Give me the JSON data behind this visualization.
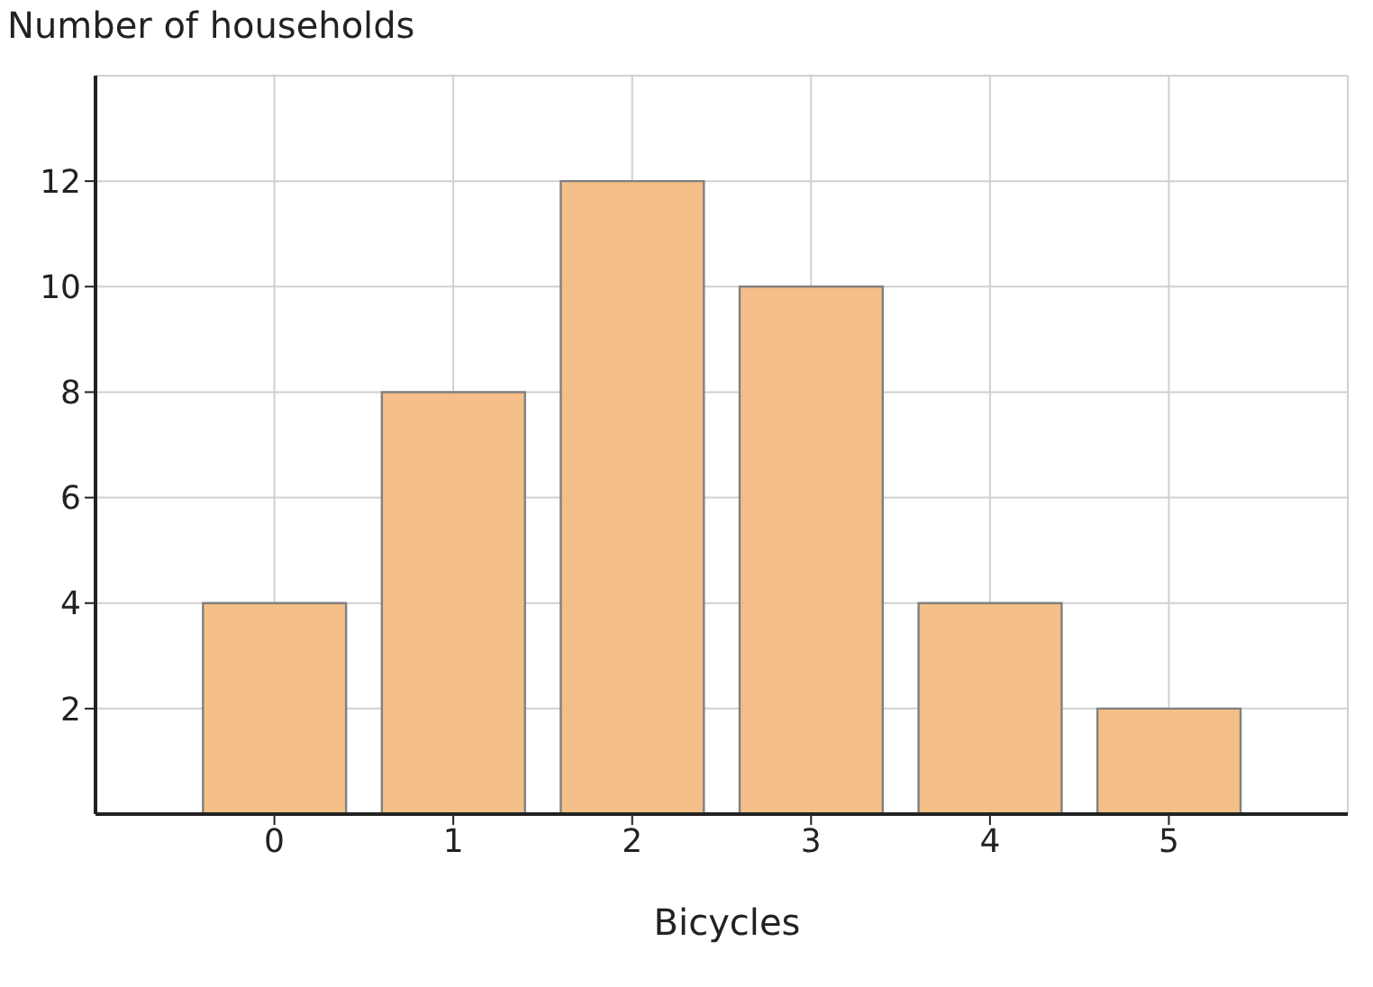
{
  "chart_data": {
    "type": "bar",
    "xlabel": "Bicycles",
    "ylabel": "Number of households",
    "x": [
      0,
      1,
      2,
      3,
      4,
      5
    ],
    "values": [
      4,
      8,
      12,
      10,
      4,
      2
    ],
    "color": "#f3bc82",
    "xlim": [
      -1,
      6
    ],
    "xticks": [
      0,
      1,
      2,
      3,
      4,
      5
    ],
    "ylim": [
      0,
      14
    ],
    "yticks": [
      2,
      4,
      6,
      8,
      10,
      12
    ],
    "grid": true
  }
}
